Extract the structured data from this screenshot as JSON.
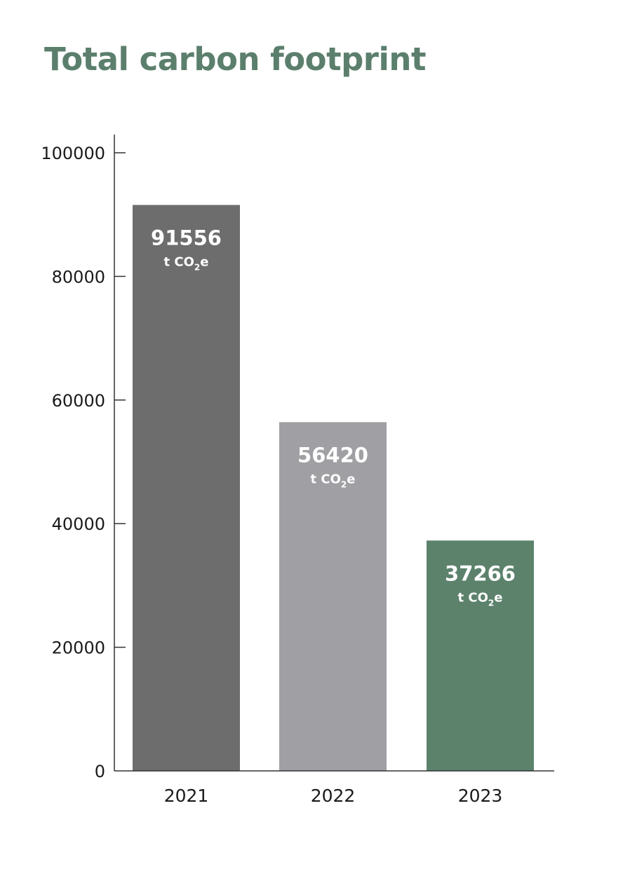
{
  "chart_data": {
    "type": "bar",
    "title": "Total carbon footprint",
    "categories": [
      "2021",
      "2022",
      "2023"
    ],
    "values": [
      91556,
      56420,
      37266
    ],
    "data_labels": [
      "91556",
      "56420",
      "37266"
    ],
    "unit": {
      "prefix": "t CO",
      "subscript": "2",
      "suffix": "e"
    },
    "colors": [
      "#6d6d6d",
      "#a0a0a4",
      "#5c826c"
    ],
    "title_color": "#5b7f6c",
    "ylim": [
      0,
      100000
    ],
    "yticks": [
      0,
      20000,
      40000,
      60000,
      80000,
      100000
    ],
    "ytick_labels": [
      "0",
      "20000",
      "40000",
      "60000",
      "80000",
      "100000"
    ],
    "xlabel": "",
    "ylabel": "",
    "grid": false
  }
}
